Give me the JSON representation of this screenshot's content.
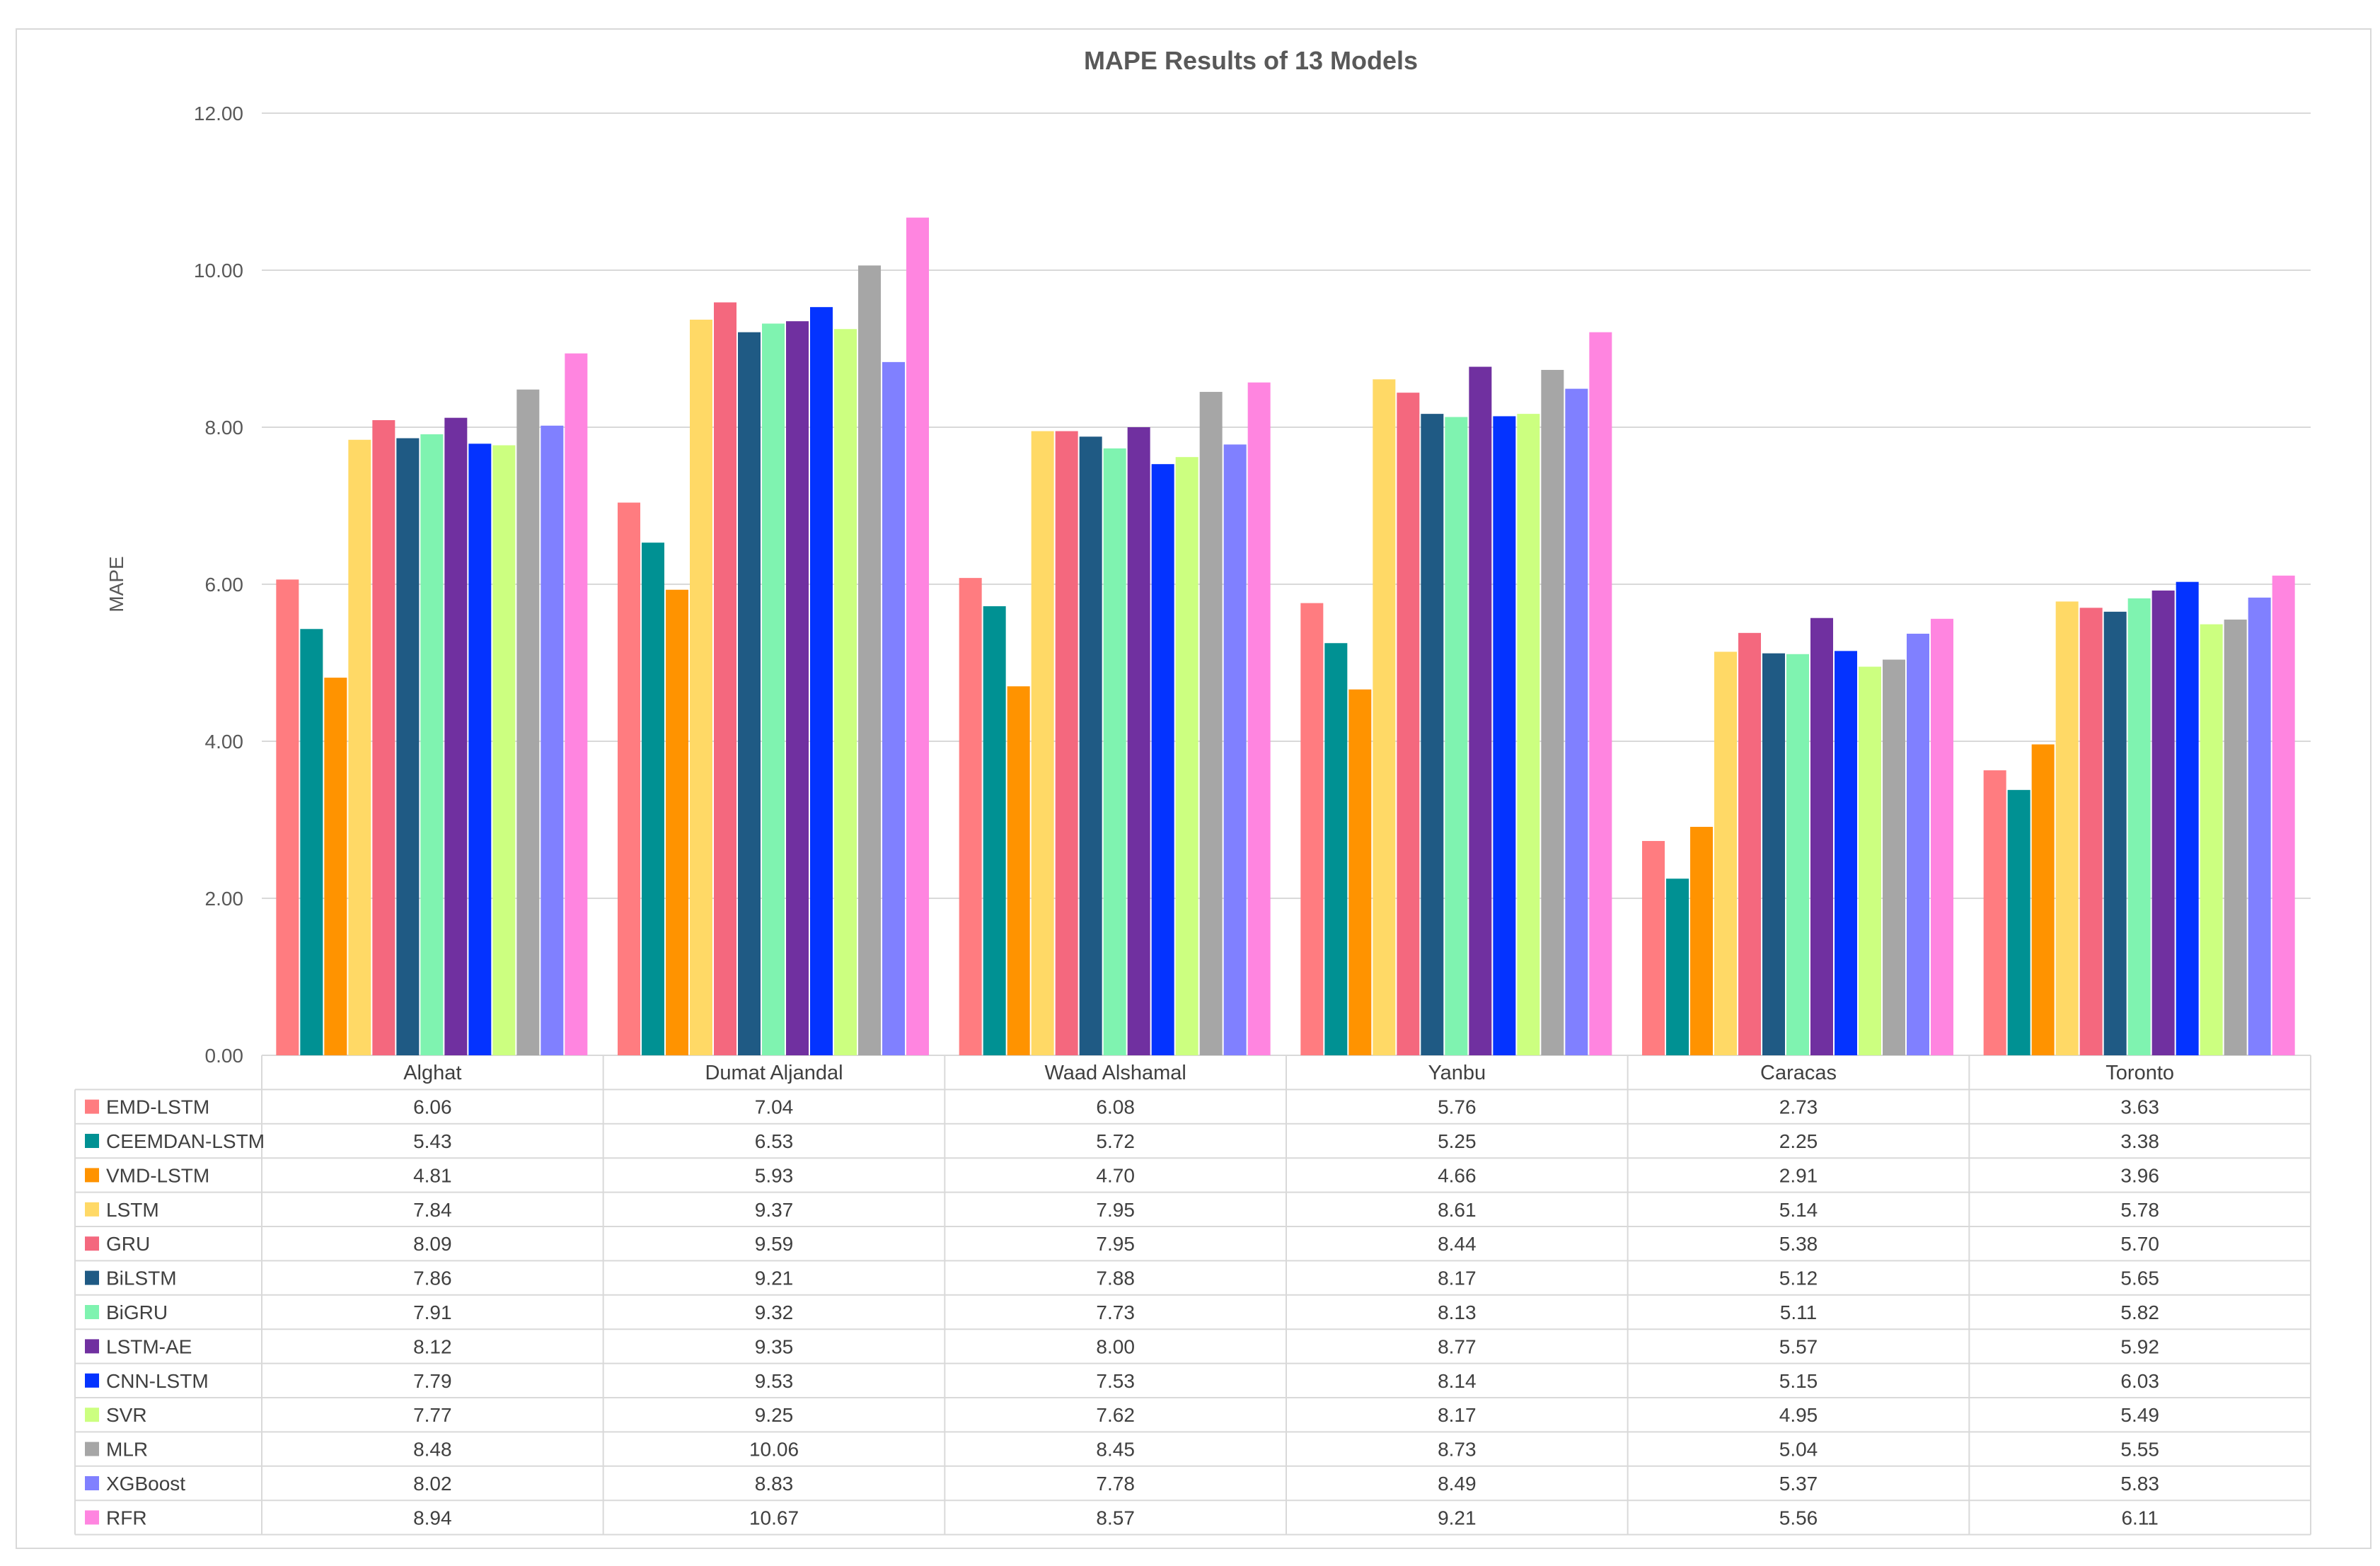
{
  "chart_data": {
    "type": "bar",
    "title": "MAPE Results of 13 Models",
    "ylabel": "MAPE",
    "xlabel": "",
    "ylim": [
      0,
      12
    ],
    "yticks": [
      "0.00",
      "2.00",
      "4.00",
      "6.00",
      "8.00",
      "10.00",
      "12.00"
    ],
    "grid": true,
    "legend": "data-table",
    "categories": [
      "Alghat",
      "Dumat Aljandal",
      "Waad Alshamal",
      "Yanbu",
      "Caracas",
      "Toronto"
    ],
    "series": [
      {
        "name": "EMD-LSTM",
        "color": "#FF7C80",
        "values": [
          6.06,
          7.04,
          6.08,
          5.76,
          2.73,
          3.63
        ],
        "labels": [
          "6.06",
          "7.04",
          "6.08",
          "5.76",
          "2.73",
          "3.63"
        ]
      },
      {
        "name": "CEEMDAN-LSTM",
        "color": "#009193",
        "values": [
          5.43,
          6.53,
          5.72,
          5.25,
          2.25,
          3.38
        ],
        "labels": [
          "5.43",
          "6.53",
          "5.72",
          "5.25",
          "2.25",
          "3.38"
        ]
      },
      {
        "name": "VMD-LSTM",
        "color": "#FF9300",
        "values": [
          4.81,
          5.93,
          4.7,
          4.66,
          2.91,
          3.96
        ],
        "labels": [
          "4.81",
          "5.93",
          "4.70",
          "4.66",
          "2.91",
          "3.96"
        ]
      },
      {
        "name": "LSTM",
        "color": "#FFD966",
        "values": [
          7.84,
          9.37,
          7.95,
          8.61,
          5.14,
          5.78
        ],
        "labels": [
          "7.84",
          "9.37",
          "7.95",
          "8.61",
          "5.14",
          "5.78"
        ]
      },
      {
        "name": "GRU",
        "color": "#F4687E",
        "values": [
          8.09,
          9.59,
          7.95,
          8.44,
          5.38,
          5.7
        ],
        "labels": [
          "8.09",
          "9.59",
          "7.95",
          "8.44",
          "5.38",
          "5.70"
        ]
      },
      {
        "name": "BiLSTM",
        "color": "#1F5A84",
        "values": [
          7.86,
          9.21,
          7.88,
          8.17,
          5.12,
          5.65
        ],
        "labels": [
          "7.86",
          "9.21",
          "7.88",
          "8.17",
          "5.12",
          "5.65"
        ]
      },
      {
        "name": "BiGRU",
        "color": "#7FF3B0",
        "values": [
          7.91,
          9.32,
          7.73,
          8.13,
          5.11,
          5.82
        ],
        "labels": [
          "7.91",
          "9.32",
          "7.73",
          "8.13",
          "5.11",
          "5.82"
        ]
      },
      {
        "name": "LSTM-AE",
        "color": "#7030A0",
        "values": [
          8.12,
          9.35,
          8.0,
          8.77,
          5.57,
          5.92
        ],
        "labels": [
          "8.12",
          "9.35",
          "8.00",
          "8.77",
          "5.57",
          "5.92"
        ]
      },
      {
        "name": "CNN-LSTM",
        "color": "#0433FF",
        "values": [
          7.79,
          9.53,
          7.53,
          8.14,
          5.15,
          6.03
        ],
        "labels": [
          "7.79",
          "9.53",
          "7.53",
          "8.14",
          "5.15",
          "6.03"
        ]
      },
      {
        "name": "SVR",
        "color": "#CCFF80",
        "values": [
          7.77,
          9.25,
          7.62,
          8.17,
          4.95,
          5.49
        ],
        "labels": [
          "7.77",
          "9.25",
          "7.62",
          "8.17",
          "4.95",
          "5.49"
        ]
      },
      {
        "name": "MLR",
        "color": "#A6A6A6",
        "values": [
          8.48,
          10.06,
          8.45,
          8.73,
          5.04,
          5.55
        ],
        "labels": [
          "8.48",
          "10.06",
          "8.45",
          "8.73",
          "5.04",
          "5.55"
        ]
      },
      {
        "name": "XGBoost",
        "color": "#8080FF",
        "values": [
          8.02,
          8.83,
          7.78,
          8.49,
          5.37,
          5.83
        ],
        "labels": [
          "8.02",
          "8.83",
          "7.78",
          "8.49",
          "5.37",
          "5.83"
        ]
      },
      {
        "name": "RFR",
        "color": "#FF85E0",
        "values": [
          8.94,
          10.67,
          8.57,
          9.21,
          5.56,
          6.11
        ],
        "labels": [
          "8.94",
          "10.67",
          "8.57",
          "9.21",
          "5.56",
          "6.11"
        ]
      }
    ]
  }
}
